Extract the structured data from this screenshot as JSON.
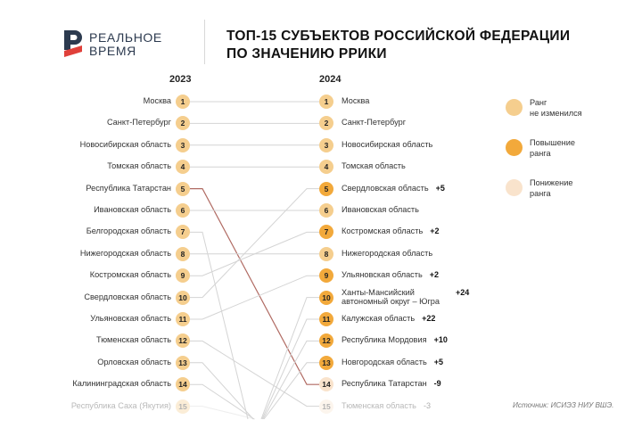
{
  "logo": {
    "line1": "РЕАЛЬНОЕ",
    "line2": "ВРЕМЯ"
  },
  "title": {
    "line1": "ТОП-15 СУБЪЕКТОВ РОССИЙСКОЙ ФЕДЕРАЦИИ",
    "line2": "ПО ЗНАЧЕНИЮ РРИКИ"
  },
  "colors": {
    "unchanged": "#f5ce8e",
    "up": "#f2a93b",
    "down": "#f9e3cc",
    "line": "#d4d4d4",
    "highlight_line": "#b06a62"
  },
  "chart_data": {
    "type": "slope",
    "left_label": "2023",
    "right_label": "2024",
    "left": [
      {
        "rank": 1,
        "name": "Москва",
        "rank_2024": 1
      },
      {
        "rank": 2,
        "name": "Санкт-Петербург",
        "rank_2024": 2
      },
      {
        "rank": 3,
        "name": "Новосибирская область",
        "rank_2024": 3
      },
      {
        "rank": 4,
        "name": "Томская область",
        "rank_2024": 4
      },
      {
        "rank": 5,
        "name": "Республика Татарстан",
        "rank_2024": 14,
        "highlight": true
      },
      {
        "rank": 6,
        "name": "Ивановская область",
        "rank_2024": 6
      },
      {
        "rank": 7,
        "name": "Белгородская область",
        "rank_2024": null
      },
      {
        "rank": 8,
        "name": "Нижегородская область",
        "rank_2024": 8
      },
      {
        "rank": 9,
        "name": "Костромская область",
        "rank_2024": 7
      },
      {
        "rank": 10,
        "name": "Свердловская область",
        "rank_2024": 5
      },
      {
        "rank": 11,
        "name": "Ульяновская область",
        "rank_2024": 9
      },
      {
        "rank": 12,
        "name": "Тюменская область",
        "rank_2024": 15
      },
      {
        "rank": 13,
        "name": "Орловская область",
        "rank_2024": null
      },
      {
        "rank": 14,
        "name": "Калининградская область",
        "rank_2024": null
      },
      {
        "rank": 15,
        "name": "Республика Саха (Якутия)",
        "rank_2024": null,
        "faded": true
      }
    ],
    "right": [
      {
        "rank": 1,
        "name": "Москва",
        "change": "",
        "status": "unchanged"
      },
      {
        "rank": 2,
        "name": "Санкт-Петербург",
        "change": "",
        "status": "unchanged"
      },
      {
        "rank": 3,
        "name": "Новосибирская область",
        "change": "",
        "status": "unchanged"
      },
      {
        "rank": 4,
        "name": "Томская область",
        "change": "",
        "status": "unchanged"
      },
      {
        "rank": 5,
        "name": "Свердловская область",
        "change": "+5",
        "status": "up"
      },
      {
        "rank": 6,
        "name": "Ивановская область",
        "change": "",
        "status": "unchanged"
      },
      {
        "rank": 7,
        "name": "Костромская область",
        "change": "+2",
        "status": "up"
      },
      {
        "rank": 8,
        "name": "Нижегородская область",
        "change": "",
        "status": "unchanged"
      },
      {
        "rank": 9,
        "name": "Ульяновская область",
        "change": "+2",
        "status": "up"
      },
      {
        "rank": 10,
        "name": "Ханты-Мансийский",
        "name2": "автономный округ – Югра",
        "change": "+24",
        "status": "up"
      },
      {
        "rank": 11,
        "name": "Калужская область",
        "change": "+22",
        "status": "up"
      },
      {
        "rank": 12,
        "name": "Республика Мордовия",
        "change": "+10",
        "status": "up"
      },
      {
        "rank": 13,
        "name": "Новгородская область",
        "change": "+5",
        "status": "up"
      },
      {
        "rank": 14,
        "name": "Республика Татарстан",
        "change": "-9",
        "status": "down"
      },
      {
        "rank": 15,
        "name": "Тюменская область",
        "change": "-3",
        "status": "down",
        "faded": true
      }
    ]
  },
  "legend": [
    {
      "label": "Ранг",
      "label2": "не изменился",
      "status": "unchanged"
    },
    {
      "label": "Повышение",
      "label2": "ранга",
      "status": "up"
    },
    {
      "label": "Понижение",
      "label2": "ранга",
      "status": "down"
    }
  ],
  "source": "Источник: ИСИЭЗ НИУ ВШЭ."
}
